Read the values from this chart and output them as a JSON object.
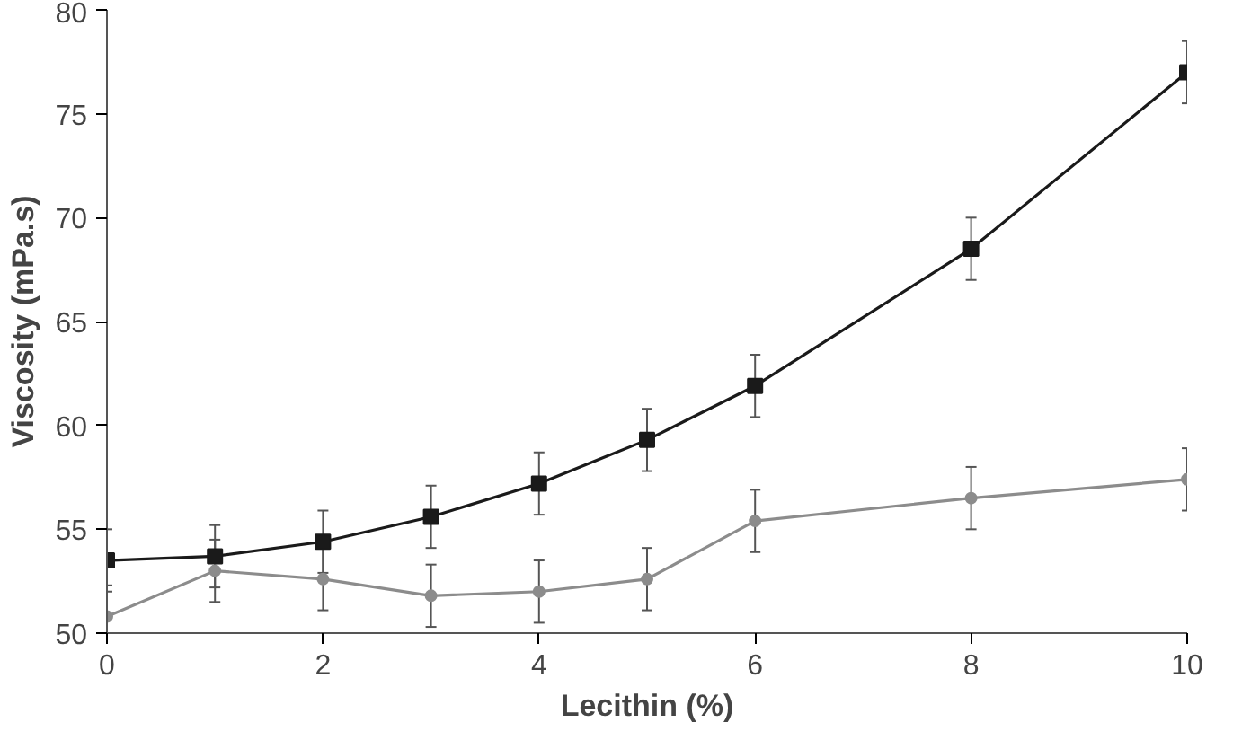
{
  "chart_data": {
    "type": "line",
    "xlabel": "Lecithin (%)",
    "ylabel": "Viscosity (mPa.s)",
    "x": [
      0,
      1,
      2,
      3,
      4,
      5,
      6,
      8,
      10
    ],
    "xlim": [
      0,
      10
    ],
    "xticks": [
      0,
      2,
      4,
      6,
      8,
      10
    ],
    "ylim": [
      50,
      80
    ],
    "yticks": [
      50,
      55,
      60,
      65,
      70,
      75,
      80
    ],
    "grid": false,
    "line_style": "solid",
    "series": [
      {
        "color": "#1a1a1a",
        "marker": "square",
        "values": [
          53.5,
          53.7,
          54.4,
          55.6,
          57.2,
          59.3,
          61.9,
          68.5,
          77.0
        ],
        "errors": [
          1.5,
          1.5,
          1.5,
          1.5,
          1.5,
          1.5,
          1.5,
          1.5,
          1.5
        ]
      },
      {
        "color": "#8c8c8c",
        "marker": "circle",
        "values": [
          50.8,
          53.0,
          52.6,
          51.8,
          52.0,
          52.6,
          55.4,
          56.5,
          57.4
        ],
        "errors": [
          1.5,
          1.5,
          1.5,
          1.5,
          1.5,
          1.5,
          1.5,
          1.5,
          1.5
        ]
      }
    ]
  }
}
